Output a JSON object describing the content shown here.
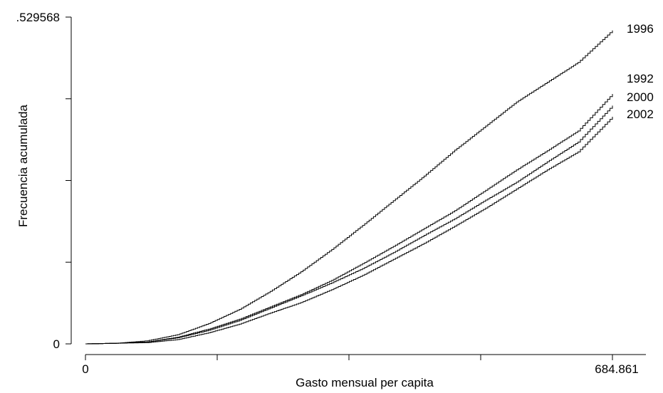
{
  "chart_data": {
    "type": "line",
    "title": "",
    "xlabel": "Gasto mensual per capita",
    "ylabel": "Frecuencia acumulada",
    "xlim": [
      0,
      684.861
    ],
    "ylim": [
      0,
      0.529568
    ],
    "x_tick_labels": [
      "0",
      "684.861"
    ],
    "y_tick_labels": [
      "0",
      ".529568"
    ],
    "x_minor_ticks": [
      171.215,
      342.43,
      513.646
    ],
    "y_minor_ticks": [
      0.132392,
      0.264784,
      0.397176
    ],
    "grid": false,
    "legend": "labels at line ends",
    "series": [
      {
        "name": "1996",
        "x": [
          0,
          40,
          80,
          120,
          160,
          200,
          240,
          280,
          320,
          360,
          400,
          440,
          480,
          520,
          560,
          600,
          640,
          684.861
        ],
        "y": [
          0,
          0.001,
          0.005,
          0.015,
          0.033,
          0.056,
          0.085,
          0.117,
          0.153,
          0.192,
          0.232,
          0.272,
          0.314,
          0.353,
          0.392,
          0.424,
          0.456,
          0.508
        ]
      },
      {
        "name": "1992",
        "x": [
          0,
          40,
          80,
          120,
          160,
          200,
          240,
          280,
          320,
          360,
          400,
          440,
          480,
          520,
          560,
          600,
          640,
          684.861
        ],
        "y": [
          0,
          0.001,
          0.003,
          0.011,
          0.024,
          0.04,
          0.06,
          0.08,
          0.103,
          0.13,
          0.158,
          0.187,
          0.216,
          0.249,
          0.282,
          0.313,
          0.345,
          0.405
        ]
      },
      {
        "name": "2000",
        "x": [
          0,
          40,
          80,
          120,
          160,
          200,
          240,
          280,
          320,
          360,
          400,
          440,
          480,
          520,
          560,
          600,
          640,
          684.861
        ],
        "y": [
          0,
          0.001,
          0.003,
          0.01,
          0.022,
          0.038,
          0.058,
          0.078,
          0.099,
          0.122,
          0.148,
          0.176,
          0.203,
          0.233,
          0.262,
          0.295,
          0.327,
          0.386
        ]
      },
      {
        "name": "2002",
        "x": [
          0,
          40,
          80,
          120,
          160,
          200,
          240,
          280,
          320,
          360,
          400,
          440,
          480,
          520,
          560,
          600,
          640,
          684.861
        ],
        "y": [
          0,
          0.001,
          0.002,
          0.007,
          0.018,
          0.032,
          0.05,
          0.067,
          0.088,
          0.111,
          0.137,
          0.163,
          0.191,
          0.22,
          0.251,
          0.282,
          0.311,
          0.368
        ]
      }
    ]
  }
}
